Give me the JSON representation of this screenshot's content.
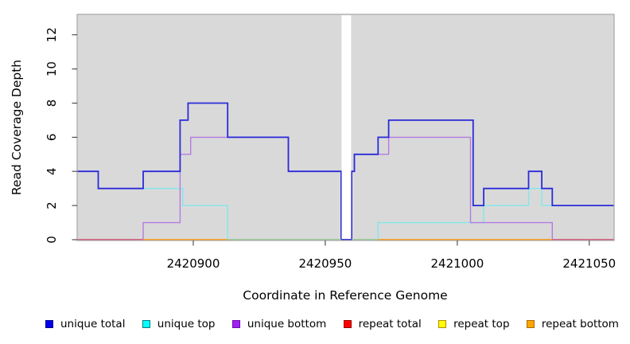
{
  "chart_data": {
    "type": "line",
    "subtype": "step-coverage",
    "title": "",
    "xlabel": "Coordinate in Reference Genome",
    "ylabel": "Read Coverage Depth",
    "xlim": [
      2420856,
      2421059.4
    ],
    "ylim": [
      0,
      13.2
    ],
    "grid": "off",
    "legend_position": "bottom",
    "x_ticks": {
      "values": [
        2420900,
        2420950,
        2421000,
        2421050
      ],
      "labels": [
        "2420900",
        "2420950",
        "2421000",
        "2421050"
      ]
    },
    "y_ticks": {
      "values": [
        0,
        2,
        4,
        6,
        8,
        10,
        12
      ],
      "labels": [
        "0",
        "2",
        "4",
        "6",
        "8",
        "10",
        "12"
      ]
    },
    "panel": {
      "bg": "#d9d9d9",
      "border": "#a6a6a6"
    },
    "gap_band": {
      "from": 2420956.2,
      "to": 2420959.8,
      "color": "#ffffff"
    },
    "x_end": 2421059.4,
    "series": [
      {
        "name": "repeat total",
        "color": "#e03131",
        "line_width": 1.2,
        "points": [
          [
            2420856,
            0
          ]
        ]
      },
      {
        "name": "repeat top",
        "color": "#f5e642",
        "line_width": 1.2,
        "points": [
          [
            2420856,
            0
          ]
        ]
      },
      {
        "name": "repeat bottom",
        "color": "#ffa217",
        "line_width": 1.5,
        "points": [
          [
            2420856,
            0
          ]
        ]
      },
      {
        "name": "unique top",
        "color": "#82e7e9",
        "line_width": 1.4,
        "points": [
          [
            2420856,
            4
          ],
          [
            2420864,
            3
          ],
          [
            2420896,
            2
          ],
          [
            2420913,
            0
          ],
          [
            2420970,
            1
          ],
          [
            2421010,
            2
          ],
          [
            2421027,
            3
          ],
          [
            2421032,
            2
          ]
        ]
      },
      {
        "name": "unique bottom",
        "color": "#b47ae2",
        "line_width": 1.4,
        "points": [
          [
            2420856,
            0
          ],
          [
            2420881,
            1
          ],
          [
            2420895,
            5
          ],
          [
            2420899,
            6
          ],
          [
            2420936,
            4
          ],
          [
            2420956,
            0
          ],
          [
            2420960,
            4
          ],
          [
            2420961,
            5
          ],
          [
            2420974,
            6
          ],
          [
            2421005,
            1
          ],
          [
            2421036,
            0
          ]
        ]
      },
      {
        "name": "unique total",
        "color": "#2b2bd9",
        "line_width": 1.8,
        "points": [
          [
            2420856,
            4
          ],
          [
            2420864,
            3
          ],
          [
            2420881,
            4
          ],
          [
            2420895,
            7
          ],
          [
            2420898,
            8
          ],
          [
            2420913,
            6
          ],
          [
            2420936,
            4
          ],
          [
            2420956,
            0
          ],
          [
            2420960,
            4
          ],
          [
            2420961,
            5
          ],
          [
            2420970,
            6
          ],
          [
            2420974,
            7
          ],
          [
            2421006,
            2
          ],
          [
            2421010,
            3
          ],
          [
            2421027,
            4
          ],
          [
            2421032,
            3
          ],
          [
            2421036,
            2
          ]
        ]
      }
    ],
    "zero_line_overlay": [
      {
        "from": 2420856,
        "to": 2420881,
        "color": "#d6567e"
      },
      {
        "from": 2420881,
        "to": 2420913,
        "color": "#ffa217"
      },
      {
        "from": 2420913,
        "to": 2420956,
        "color": "#95d09b"
      },
      {
        "from": 2420960,
        "to": 2420970,
        "color": "#95d09b"
      },
      {
        "from": 2420970,
        "to": 2421036,
        "color": "#ffa217"
      },
      {
        "from": 2421036,
        "to": 2421059.4,
        "color": "#d6567e"
      }
    ],
    "legend": [
      {
        "label": "unique total",
        "fill": "#0000ee",
        "border": "#00008b"
      },
      {
        "label": "unique top",
        "fill": "#00ffff",
        "border": "#007d7d"
      },
      {
        "label": "unique bottom",
        "fill": "#a020f0",
        "border": "#6a0dad"
      },
      {
        "label": "repeat total",
        "fill": "#ff0000",
        "border": "#990000"
      },
      {
        "label": "repeat top",
        "fill": "#ffff00",
        "border": "#b08d00"
      },
      {
        "label": "repeat bottom",
        "fill": "#ffa500",
        "border": "#a66b00"
      }
    ]
  }
}
